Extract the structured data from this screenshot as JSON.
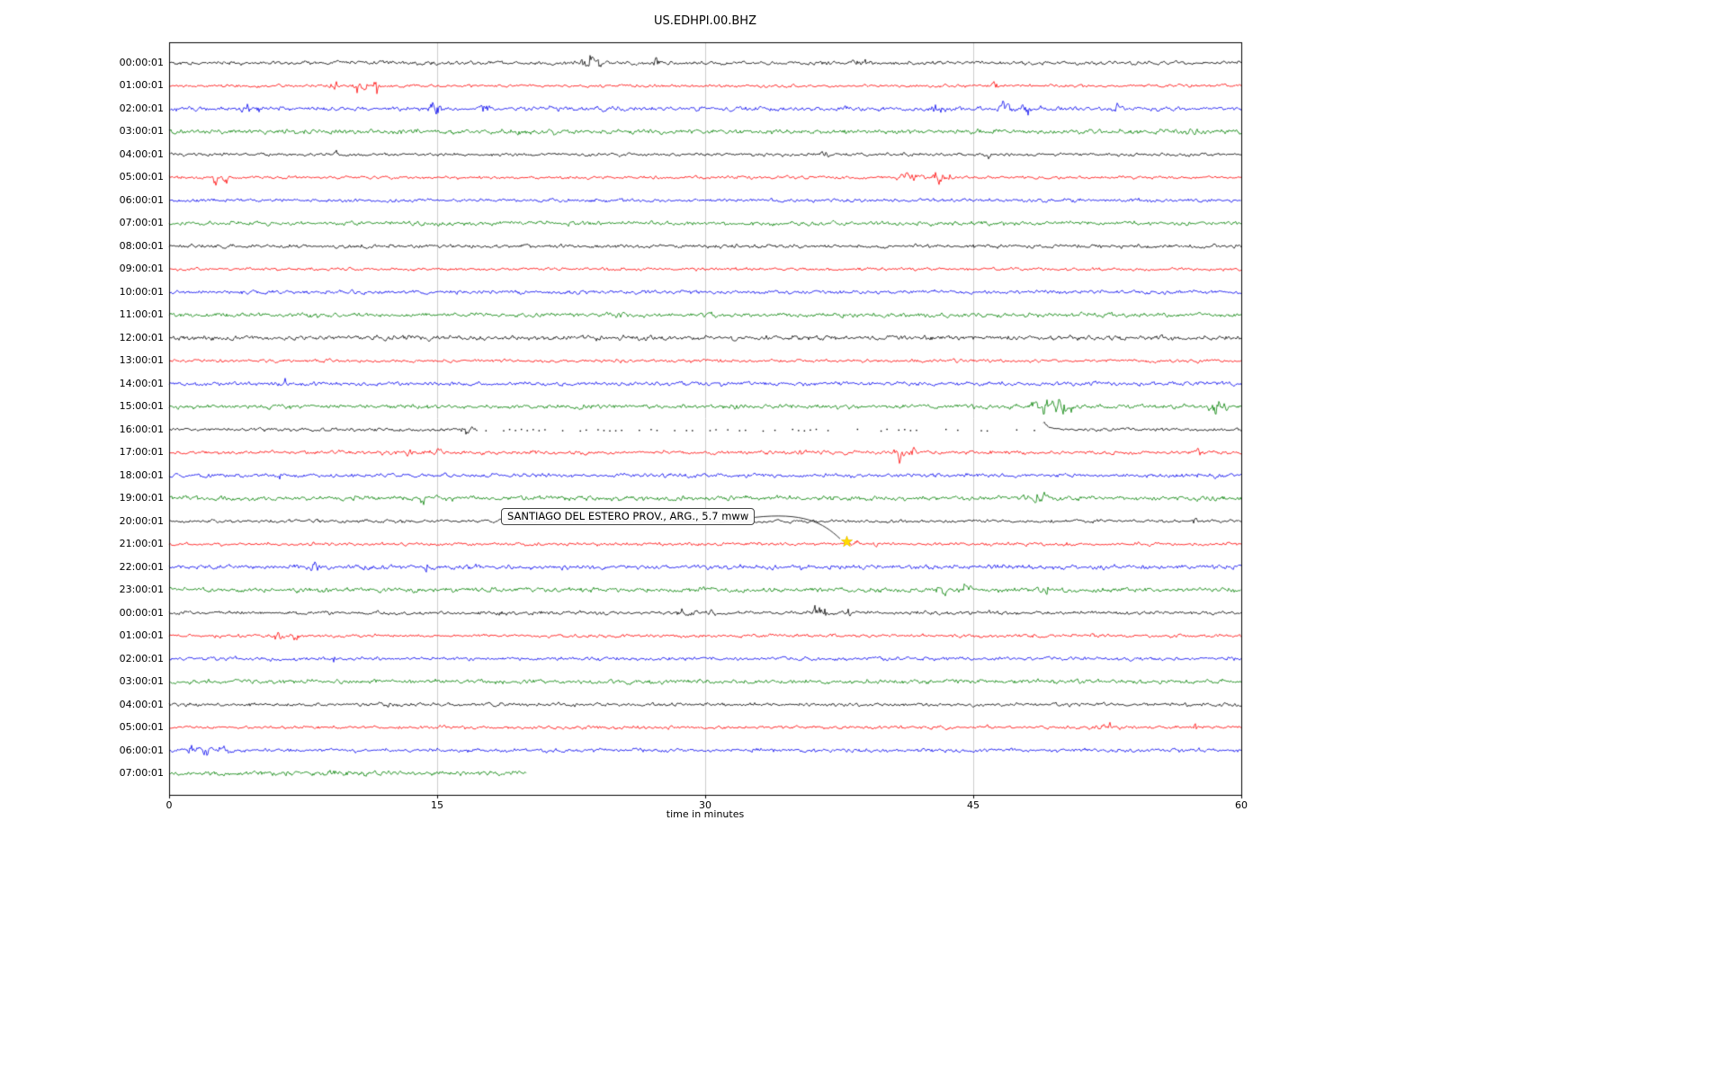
{
  "page": {
    "background": "#ffffff"
  },
  "chart_data": {
    "type": "line",
    "title": "US.EDHPI.00.BHZ",
    "xlabel": "time in minutes",
    "x_range": [
      0,
      60
    ],
    "x_ticks": [
      0,
      15,
      30,
      45,
      60
    ],
    "grid_minutes": [
      15,
      30,
      45
    ],
    "trace_colors": {
      "black": "#000000",
      "red": "#ff0000",
      "blue": "#0000ee",
      "green": "#008000"
    },
    "annotation": {
      "text": "SANTIAGO DEL ESTERO PROV., ARG., 5.7 mww",
      "row_index": 21,
      "minute": 38.0,
      "star_glyph": "★",
      "star_color": "#ffd900"
    },
    "gap": {
      "row_index": 16,
      "start_minute": 17.3,
      "end_minute": 48.9
    },
    "rows": [
      {
        "label": "00:00:01",
        "color": "black",
        "amp": 1.7,
        "events": [
          [
            7.9,
            3,
            0.05
          ],
          [
            23.5,
            8,
            0.22
          ],
          [
            24.0,
            4,
            0.12
          ],
          [
            27.3,
            5,
            0.1
          ],
          [
            38.8,
            2,
            0.3
          ]
        ]
      },
      {
        "label": "01:00:01",
        "color": "red",
        "amp": 1.4,
        "events": [
          [
            9.3,
            6,
            0.15
          ],
          [
            10.7,
            8,
            0.18
          ],
          [
            11.6,
            9,
            0.07
          ],
          [
            34.6,
            2.5,
            0.08
          ],
          [
            46.2,
            3.5,
            0.18
          ]
        ]
      },
      {
        "label": "02:00:01",
        "color": "blue",
        "amp": 1.9,
        "events": [
          [
            4.4,
            4,
            0.18
          ],
          [
            5.0,
            3,
            0.1
          ],
          [
            14.9,
            6,
            0.22
          ],
          [
            17.7,
            4,
            0.18
          ],
          [
            21.5,
            2.5,
            0.15
          ],
          [
            43.0,
            4,
            0.2
          ],
          [
            46.7,
            4,
            0.3
          ],
          [
            47.9,
            5,
            0.3
          ],
          [
            53.0,
            3,
            0.18
          ]
        ]
      },
      {
        "label": "03:00:01",
        "color": "green",
        "amp": 2.2,
        "events": [
          [
            57.5,
            2,
            0.3
          ]
        ]
      },
      {
        "label": "04:00:01",
        "color": "black",
        "amp": 1.5,
        "events": [
          [
            9.4,
            4.5,
            0.07
          ],
          [
            36.7,
            2,
            0.15
          ],
          [
            45.9,
            2,
            0.1
          ]
        ]
      },
      {
        "label": "05:00:01",
        "color": "red",
        "amp": 1.4,
        "events": [
          [
            2.6,
            5,
            0.15
          ],
          [
            3.2,
            4,
            0.1
          ],
          [
            8.4,
            3,
            0.06
          ],
          [
            41.4,
            3.5,
            0.7
          ],
          [
            43.1,
            8,
            0.2
          ],
          [
            43.6,
            5,
            0.1
          ]
        ]
      },
      {
        "label": "06:00:01",
        "color": "blue",
        "amp": 1.6,
        "events": [
          [
            23.7,
            1.5,
            0.1
          ]
        ]
      },
      {
        "label": "07:00:01",
        "color": "green",
        "amp": 1.9,
        "events": []
      },
      {
        "label": "08:00:01",
        "color": "black",
        "amp": 1.7,
        "events": []
      },
      {
        "label": "09:00:01",
        "color": "red",
        "amp": 1.4,
        "events": []
      },
      {
        "label": "10:00:01",
        "color": "blue",
        "amp": 1.7,
        "events": []
      },
      {
        "label": "11:00:01",
        "color": "green",
        "amp": 2.0,
        "events": [
          [
            25.3,
            1.5,
            0.2
          ]
        ]
      },
      {
        "label": "12:00:01",
        "color": "black",
        "amp": 2.2,
        "events": []
      },
      {
        "label": "13:00:01",
        "color": "red",
        "amp": 1.5,
        "events": []
      },
      {
        "label": "14:00:01",
        "color": "blue",
        "amp": 1.8,
        "events": [
          [
            4.2,
            2.5,
            0.08
          ],
          [
            6.5,
            3,
            0.05
          ]
        ]
      },
      {
        "label": "15:00:01",
        "color": "green",
        "amp": 2.0,
        "events": [
          [
            48.8,
            11,
            0.28
          ],
          [
            49.8,
            8,
            0.25
          ],
          [
            50.3,
            5,
            0.2
          ],
          [
            58.5,
            6,
            0.2
          ],
          [
            59.0,
            4,
            0.15
          ]
        ]
      },
      {
        "label": "16:00:01",
        "color": "black",
        "amp": 1.6,
        "events": [
          [
            12.9,
            4,
            0.08
          ],
          [
            16.6,
            3.5,
            0.35
          ]
        ]
      },
      {
        "label": "17:00:01",
        "color": "red",
        "amp": 1.7,
        "events": [
          [
            6.6,
            3,
            0.08
          ],
          [
            13.4,
            4,
            0.12
          ],
          [
            14.9,
            4,
            0.15
          ],
          [
            35.3,
            6,
            0.06
          ],
          [
            40.9,
            8,
            0.2
          ],
          [
            41.6,
            5,
            0.1
          ],
          [
            57.6,
            4,
            0.08
          ]
        ]
      },
      {
        "label": "18:00:01",
        "color": "blue",
        "amp": 1.8,
        "events": [
          [
            6.2,
            3,
            0.08
          ],
          [
            14.5,
            2.5,
            0.15
          ],
          [
            42.8,
            3,
            0.15
          ],
          [
            57.5,
            2.5,
            0.1
          ]
        ]
      },
      {
        "label": "19:00:01",
        "color": "green",
        "amp": 2.2,
        "events": [
          [
            14.2,
            3.5,
            0.12
          ],
          [
            48.8,
            3.5,
            0.4
          ]
        ]
      },
      {
        "label": "20:00:01",
        "color": "black",
        "amp": 1.5,
        "events": [
          [
            57.4,
            2,
            0.08
          ]
        ]
      },
      {
        "label": "21:00:01",
        "color": "red",
        "amp": 1.5,
        "events": [
          [
            38.3,
            2,
            0.25
          ],
          [
            39.5,
            6.5,
            0.07
          ],
          [
            50.2,
            2.5,
            0.08
          ]
        ]
      },
      {
        "label": "22:00:01",
        "color": "blue",
        "amp": 2.0,
        "events": [
          [
            8.1,
            4,
            0.15
          ],
          [
            10.9,
            3,
            0.12
          ],
          [
            14.4,
            4,
            0.15
          ],
          [
            17.3,
            3,
            0.1
          ],
          [
            35.4,
            3,
            0.12
          ],
          [
            42.9,
            2.5,
            0.1
          ]
        ]
      },
      {
        "label": "23:00:01",
        "color": "green",
        "amp": 2.1,
        "events": [
          [
            43.0,
            4.5,
            0.3
          ],
          [
            44.6,
            4,
            0.15
          ],
          [
            49.2,
            3,
            0.08
          ]
        ]
      },
      {
        "label": "00:00:01",
        "color": "black",
        "amp": 1.7,
        "events": [
          [
            18.6,
            2.5,
            0.3
          ],
          [
            28.9,
            4,
            0.25
          ],
          [
            30.4,
            3.5,
            0.15
          ],
          [
            36.4,
            6,
            0.3
          ],
          [
            37.9,
            5,
            0.15
          ]
        ]
      },
      {
        "label": "01:00:01",
        "color": "red",
        "amp": 1.5,
        "events": [
          [
            6.1,
            6,
            0.2
          ],
          [
            7.1,
            5,
            0.15
          ],
          [
            9.2,
            2.5,
            0.05
          ]
        ]
      },
      {
        "label": "02:00:01",
        "color": "blue",
        "amp": 1.6,
        "events": [
          [
            3.7,
            4.5,
            0.04
          ],
          [
            9.2,
            7,
            0.04
          ]
        ]
      },
      {
        "label": "03:00:01",
        "color": "green",
        "amp": 2.0,
        "events": []
      },
      {
        "label": "04:00:01",
        "color": "black",
        "amp": 1.6,
        "events": [
          [
            12.3,
            2,
            0.08
          ]
        ]
      },
      {
        "label": "05:00:01",
        "color": "red",
        "amp": 1.5,
        "events": [
          [
            52.4,
            3.5,
            0.5
          ],
          [
            57.4,
            6,
            0.05
          ]
        ]
      },
      {
        "label": "06:00:01",
        "color": "blue",
        "amp": 1.8,
        "events": [
          [
            1.2,
            5,
            0.15
          ],
          [
            2.1,
            4,
            0.25
          ],
          [
            3.0,
            3,
            0.2
          ]
        ]
      },
      {
        "label": "07:00:01",
        "color": "green",
        "amp": 2.2,
        "end_minute": 20,
        "events": []
      }
    ]
  }
}
